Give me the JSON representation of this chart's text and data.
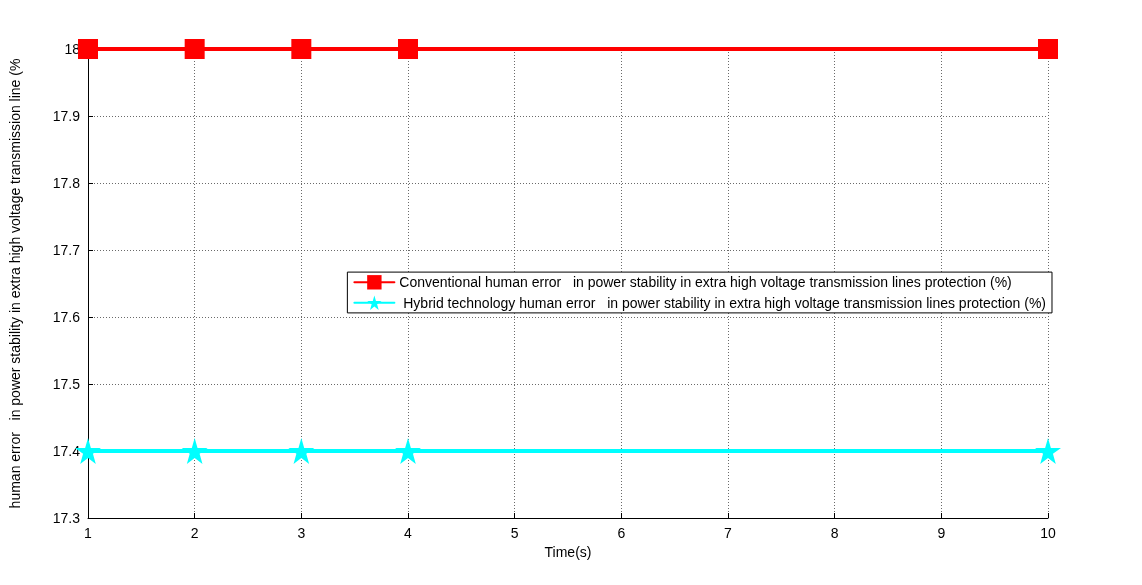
{
  "chart_data": {
    "type": "line",
    "xlabel": "Time(s)",
    "ylabel": "human error   in power stability in extra high voltage transmission line (%",
    "x": [
      1,
      2,
      3,
      4,
      10
    ],
    "series": [
      {
        "name": "Conventional human error   in power stability in extra high voltage transmission lines protection (%)",
        "color": "#ff0000",
        "marker": "square",
        "values": [
          18,
          18,
          18,
          18,
          18
        ]
      },
      {
        "name": " Hybrid technology human error   in power stability in extra high voltage transmission lines protection (%)",
        "color": "#00ffff",
        "marker": "star",
        "values": [
          17.4,
          17.4,
          17.4,
          17.4,
          17.4
        ]
      }
    ],
    "xlim": [
      1,
      10
    ],
    "xticks": [
      1,
      2,
      3,
      4,
      5,
      6,
      7,
      8,
      9,
      10
    ],
    "ylim": [
      17.3,
      18
    ],
    "yticks": [
      17.3,
      17.4,
      17.5,
      17.6,
      17.7,
      17.8,
      17.9,
      18
    ],
    "grid": true,
    "legend": "right",
    "line_style": "solid"
  }
}
